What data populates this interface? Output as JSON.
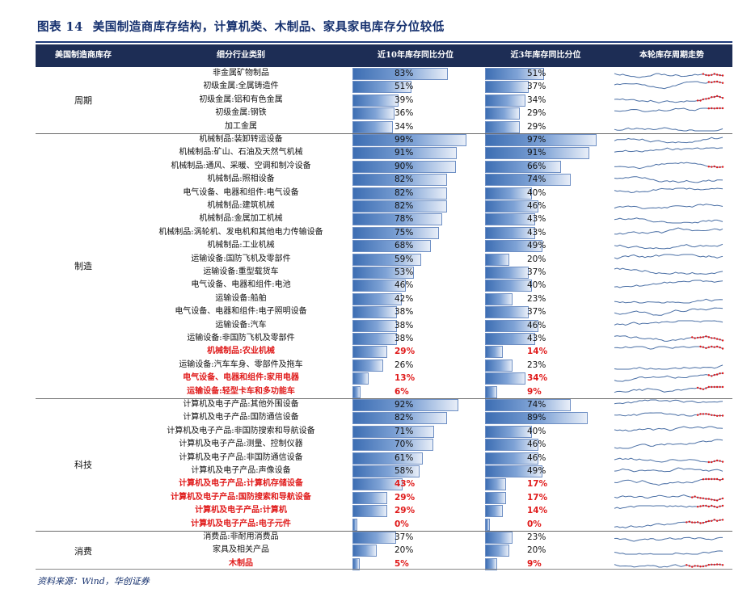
{
  "figure": {
    "number": "图表 14",
    "title": "美国制造商库存结构，计算机类、木制品、家具家电库存分位较低"
  },
  "headers": {
    "group": "美国制造商库存",
    "industry": "细分行业类别",
    "pct10": "近10年库存同比分位",
    "pct3": "近3年库存同比分位",
    "trend": "本轮库存周期走势"
  },
  "colors": {
    "header_bg": "#1d2d55",
    "title": "#15306e",
    "highlight": "#e01b1b",
    "spark_line": "#4a6fa5",
    "spark_dot": "#e01b1b"
  },
  "groups": [
    {
      "label": "周期",
      "start": 0,
      "end": 4
    },
    {
      "label": "制造",
      "start": 5,
      "end": 24
    },
    {
      "label": "科技",
      "start": 25,
      "end": 34
    },
    {
      "label": "消费",
      "start": 35,
      "end": 37
    }
  ],
  "chart_data": {
    "type": "table",
    "rows": [
      {
        "name": "非金属矿物制品",
        "p10": 83,
        "p3": 51,
        "hl": false,
        "tail": 8
      },
      {
        "name": "初级金属:全属铸造件",
        "p10": 51,
        "p3": 37,
        "hl": false,
        "tail": 6
      },
      {
        "name": "初级金属:铝和有色金属",
        "p10": 39,
        "p3": 34,
        "hl": false,
        "tail": 10
      },
      {
        "name": "初级金属:钢铁",
        "p10": 36,
        "p3": 29,
        "hl": false,
        "tail": 6
      },
      {
        "name": "加工金属",
        "p10": 34,
        "p3": 29,
        "hl": false,
        "tail": 0
      },
      {
        "name": "机械制品:装卸转运设备",
        "p10": 99,
        "p3": 97,
        "hl": false,
        "tail": 0
      },
      {
        "name": "机械制品:矿山、石油及天然气机械",
        "p10": 91,
        "p3": 91,
        "hl": false,
        "tail": 0
      },
      {
        "name": "机械制品:通风、采暖、空调和制冷设备",
        "p10": 90,
        "p3": 66,
        "hl": false,
        "tail": 6
      },
      {
        "name": "机械制品:照相设备",
        "p10": 82,
        "p3": 74,
        "hl": false,
        "tail": 0
      },
      {
        "name": "电气设备、电器和组件:电气设备",
        "p10": 82,
        "p3": 40,
        "hl": false,
        "tail": 0
      },
      {
        "name": "机械制品:建筑机械",
        "p10": 82,
        "p3": 46,
        "hl": false,
        "tail": 0
      },
      {
        "name": "机械制品:金属加工机械",
        "p10": 78,
        "p3": 43,
        "hl": false,
        "tail": 0
      },
      {
        "name": "机械制品:涡轮机、发电机和其他电力传输设备",
        "p10": 75,
        "p3": 43,
        "hl": false,
        "tail": 0
      },
      {
        "name": "机械制品:工业机械",
        "p10": 68,
        "p3": 49,
        "hl": false,
        "tail": 0
      },
      {
        "name": "运输设备:国防飞机及零部件",
        "p10": 59,
        "p3": 20,
        "hl": false,
        "tail": 0
      },
      {
        "name": "运输设备:重型载货车",
        "p10": 53,
        "p3": 37,
        "hl": false,
        "tail": 0
      },
      {
        "name": "电气设备、电器和组件:电池",
        "p10": 46,
        "p3": 40,
        "hl": false,
        "tail": 0
      },
      {
        "name": "运输设备:船舶",
        "p10": 42,
        "p3": 23,
        "hl": false,
        "tail": 0
      },
      {
        "name": "电气设备、电器和组件:电子照明设备",
        "p10": 38,
        "p3": 37,
        "hl": false,
        "tail": 0
      },
      {
        "name": "运输设备:汽车",
        "p10": 38,
        "p3": 46,
        "hl": false,
        "tail": 0
      },
      {
        "name": "运输设备:非国防飞机及零部件",
        "p10": 38,
        "p3": 43,
        "hl": false,
        "tail": 12
      },
      {
        "name": "机械制品:农业机械",
        "p10": 29,
        "p3": 14,
        "hl": true,
        "tail": 9
      },
      {
        "name": "运输设备:汽车车身、零部件及拖车",
        "p10": 26,
        "p3": 23,
        "hl": false,
        "tail": 0
      },
      {
        "name": "电气设备、电器和组件:家用电器",
        "p10": 13,
        "p3": 34,
        "hl": true,
        "tail": 6
      },
      {
        "name": "运输设备:轻型卡车和多功能车",
        "p10": 6,
        "p3": 9,
        "hl": true,
        "tail": 10
      },
      {
        "name": "计算机及电子产品:其他外围设备",
        "p10": 92,
        "p3": 74,
        "hl": false,
        "tail": 0
      },
      {
        "name": "计算机及电子产品:国防通信设备",
        "p10": 82,
        "p3": 89,
        "hl": false,
        "tail": 10
      },
      {
        "name": "计算机及电子产品:非国防搜索和导航设备",
        "p10": 71,
        "p3": 40,
        "hl": false,
        "tail": 0
      },
      {
        "name": "计算机及电子产品:测量、控制仪器",
        "p10": 70,
        "p3": 46,
        "hl": false,
        "tail": 0
      },
      {
        "name": "计算机及电子产品:非国防通信设备",
        "p10": 61,
        "p3": 46,
        "hl": false,
        "tail": 6
      },
      {
        "name": "计算机及电子产品:声像设备",
        "p10": 58,
        "p3": 49,
        "hl": false,
        "tail": 0
      },
      {
        "name": "计算机及电子产品:计算机存储设备",
        "p10": 43,
        "p3": 17,
        "hl": true,
        "tail": 8
      },
      {
        "name": "计算机及电子产品:国防搜索和导航设备",
        "p10": 29,
        "p3": 17,
        "hl": true,
        "tail": 12
      },
      {
        "name": "计算机及电子产品:计算机",
        "p10": 29,
        "p3": 14,
        "hl": true,
        "tail": 10
      },
      {
        "name": "计算机及电子产品:电子元件",
        "p10": 0,
        "p3": 0,
        "hl": true,
        "tail": 14
      },
      {
        "name": "消费品:非耐用消费品",
        "p10": 37,
        "p3": 23,
        "hl": false,
        "tail": 0
      },
      {
        "name": "家具及相关产品",
        "p10": 20,
        "p3": 20,
        "hl": false,
        "tail": 0
      },
      {
        "name": "木制品",
        "p10": 5,
        "p3": 9,
        "hl": true,
        "tail": 14
      }
    ]
  },
  "footer": {
    "source": "资料来源：Wind，华创证券"
  }
}
